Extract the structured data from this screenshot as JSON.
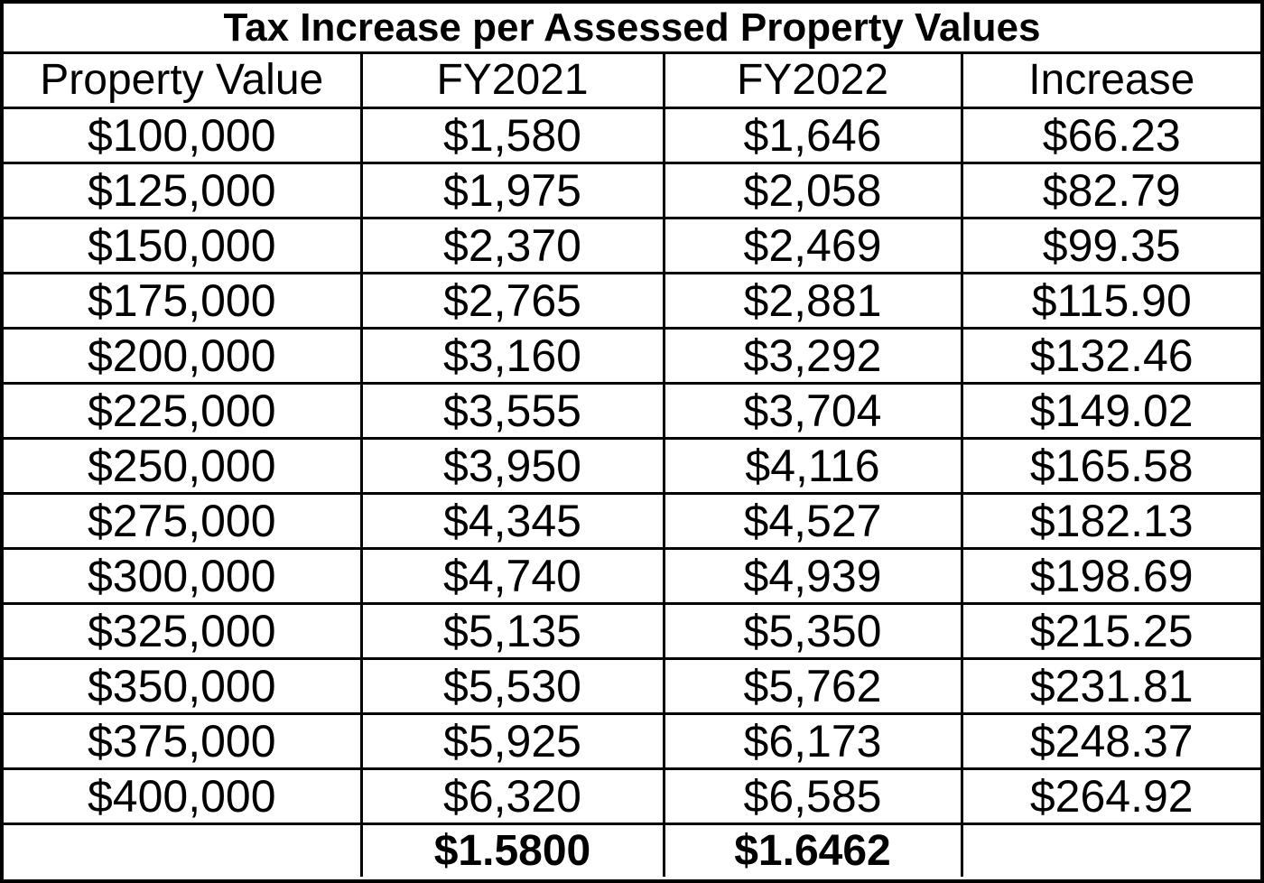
{
  "table": {
    "title": "Tax Increase per Assessed Property Values",
    "headers": [
      "Property Value",
      "FY2021",
      "FY2022",
      "Increase"
    ],
    "rows": [
      [
        "$100,000",
        "$1,580",
        "$1,646",
        "$66.23"
      ],
      [
        "$125,000",
        "$1,975",
        "$2,058",
        "$82.79"
      ],
      [
        "$150,000",
        "$2,370",
        "$2,469",
        "$99.35"
      ],
      [
        "$175,000",
        "$2,765",
        "$2,881",
        "$115.90"
      ],
      [
        "$200,000",
        "$3,160",
        "$3,292",
        "$132.46"
      ],
      [
        "$225,000",
        "$3,555",
        "$3,704",
        "$149.02"
      ],
      [
        "$250,000",
        "$3,950",
        "$4,116",
        "$165.58"
      ],
      [
        "$275,000",
        "$4,345",
        "$4,527",
        "$182.13"
      ],
      [
        "$300,000",
        "$4,740",
        "$4,939",
        "$198.69"
      ],
      [
        "$325,000",
        "$5,135",
        "$5,350",
        "$215.25"
      ],
      [
        "$350,000",
        "$5,530",
        "$5,762",
        "$231.81"
      ],
      [
        "$375,000",
        "$5,925",
        "$6,173",
        "$248.37"
      ],
      [
        "$400,000",
        "$6,320",
        "$6,585",
        "$264.92"
      ]
    ],
    "rates": [
      "",
      "$1.5800",
      "$1.6462",
      ""
    ]
  }
}
